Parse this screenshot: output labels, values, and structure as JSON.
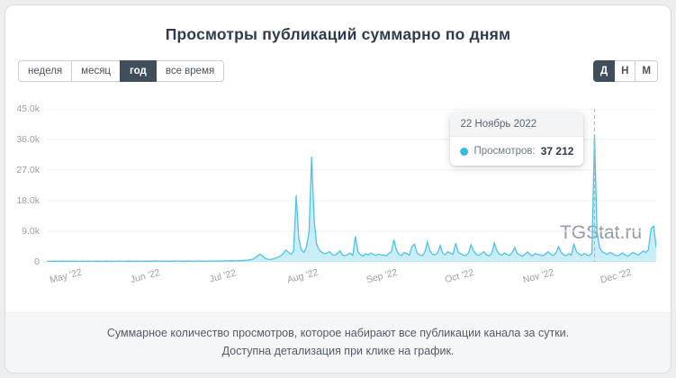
{
  "page": {
    "title": "Просмотры публикаций суммарно по дням"
  },
  "range_buttons": [
    {
      "label": "неделя",
      "active": false
    },
    {
      "label": "месяц",
      "active": false
    },
    {
      "label": "год",
      "active": true
    },
    {
      "label": "все время",
      "active": false
    }
  ],
  "granularity_buttons": [
    {
      "label": "Д",
      "active": true
    },
    {
      "label": "Н",
      "active": false
    },
    {
      "label": "М",
      "active": false
    }
  ],
  "tooltip": {
    "date": "22 Ноябрь 2022",
    "series_label": "Просмотров:",
    "value": "37 212"
  },
  "watermark": "TGStat.ru",
  "footer": {
    "line1": "Суммарное количество просмотров, которое набирают все публикации канала за сутки.",
    "line2": "Доступна детализация при клике на график."
  },
  "chart_data": {
    "type": "area",
    "title": "Просмотры публикаций суммарно по дням",
    "xlabel": "",
    "ylabel": "",
    "ylim": [
      0,
      45000
    ],
    "grid": true,
    "y_ticks": [
      "0",
      "9.0k",
      "18.0k",
      "27.0k",
      "36.0k",
      "45.0k"
    ],
    "y_tick_values": [
      0,
      9000,
      18000,
      27000,
      36000,
      45000
    ],
    "x_tick_labels": [
      "May '22",
      "Jun '22",
      "Jul '22",
      "Aug '22",
      "Sep '22",
      "Oct '22",
      "Nov '22",
      "Dec '22"
    ],
    "x_tick_indices": [
      8,
      39,
      69,
      100,
      131,
      161,
      192,
      222
    ],
    "highlight_index": 213,
    "highlight_value": 37212,
    "line_color": "#4ec3e8",
    "fill_color": "rgba(78,195,232,0.30)",
    "values": [
      150,
      180,
      160,
      200,
      170,
      190,
      210,
      180,
      200,
      150,
      180,
      220,
      160,
      190,
      210,
      170,
      230,
      180,
      150,
      200,
      250,
      190,
      160,
      210,
      180,
      220,
      170,
      200,
      240,
      180,
      160,
      190,
      210,
      230,
      170,
      200,
      180,
      160,
      220,
      250,
      200,
      180,
      300,
      220,
      190,
      260,
      210,
      240,
      180,
      200,
      280,
      230,
      190,
      210,
      250,
      270,
      200,
      180,
      230,
      260,
      210,
      190,
      240,
      220,
      200,
      280,
      250,
      230,
      210,
      300,
      280,
      320,
      350,
      300,
      400,
      380,
      420,
      450,
      500,
      600,
      800,
      1200,
      1800,
      2300,
      1700,
      1000,
      800,
      700,
      900,
      1100,
      1400,
      1800,
      2500,
      3500,
      2800,
      2200,
      3200,
      19500,
      7000,
      3500,
      2800,
      4500,
      9000,
      31000,
      12000,
      5000,
      3500,
      2800,
      2400,
      2600,
      3000,
      2200,
      1900,
      2500,
      3200,
      2000,
      1800,
      2200,
      2600,
      1900,
      7500,
      3000,
      2100,
      1700,
      2400,
      2000,
      2600,
      2200,
      1900,
      2300,
      2000,
      2000,
      1800,
      2500,
      3000,
      6500,
      3500,
      2200,
      1900,
      2800,
      2400,
      2000,
      4500,
      5200,
      2600,
      2100,
      1800,
      2900,
      5800,
      3200,
      2300,
      2000,
      2700,
      4800,
      2500,
      2100,
      3000,
      2600,
      2200,
      5500,
      2800,
      2400,
      2000,
      1800,
      2600,
      5000,
      3200,
      2200,
      1900,
      2500,
      3000,
      2100,
      1800,
      2400,
      5600,
      3400,
      2300,
      2000,
      2600,
      2200,
      1900,
      2800,
      4200,
      2400,
      2000,
      1700,
      2300,
      2900,
      2100,
      1800,
      2500,
      2200,
      2000,
      1800,
      2400,
      3000,
      2200,
      1900,
      2600,
      4500,
      2800,
      2100,
      1800,
      2400,
      2000,
      5200,
      3000,
      2300,
      1900,
      2500,
      2100,
      1800,
      2700,
      37212,
      9000,
      4200,
      3000,
      2600,
      2200,
      2800,
      2400,
      2000,
      1800,
      2200,
      2600,
      2000,
      1700,
      2300,
      2800,
      2400,
      2000,
      2600,
      3200,
      2800,
      3600,
      9800,
      10500,
      4200
    ]
  }
}
